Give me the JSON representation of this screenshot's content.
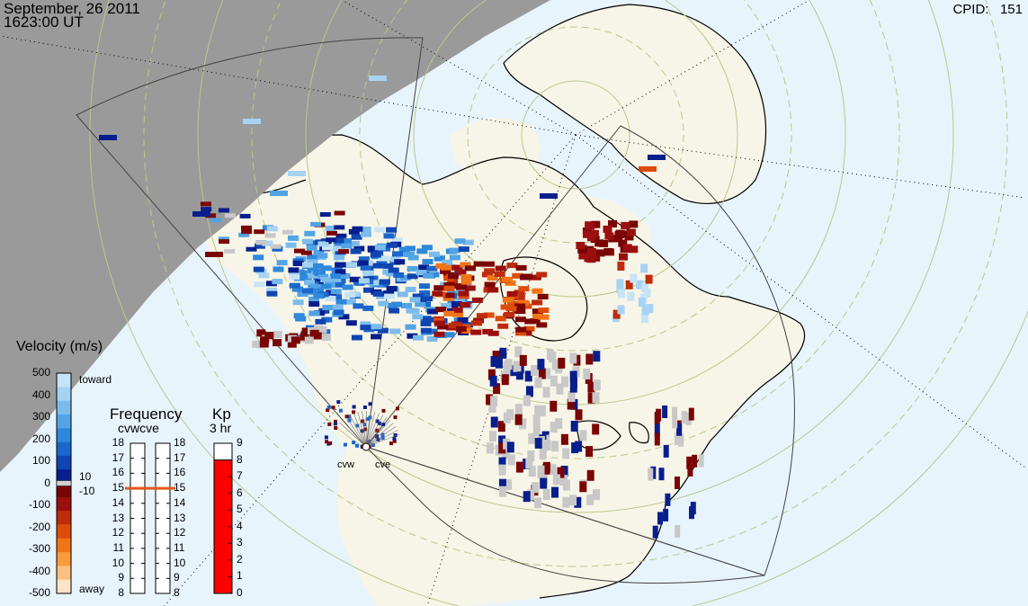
{
  "header": {
    "date": "September, 26 2011",
    "time": "1623:00 UT",
    "cpid_label": "CPID:",
    "cpid_value": "151"
  },
  "velocity_scale": {
    "title": "Velocity (m/s)",
    "ticks": [
      "500",
      "400",
      "300",
      "200",
      "100",
      "0",
      "-100",
      "-200",
      "-300",
      "-400",
      "-500"
    ],
    "toward_label": "toward",
    "away_label": "away",
    "threshold_pos": "10",
    "threshold_neg": "-10",
    "toward_colors": [
      "#c6e4f7",
      "#a7d3f3",
      "#7cbcec",
      "#52a4e4",
      "#2e88db",
      "#1a67cc",
      "#0f45b1",
      "#081e8c"
    ],
    "away_colors": [
      "#7a0505",
      "#9c0f0f",
      "#bd2c0c",
      "#dc4d0a",
      "#f17415",
      "#f99a3b",
      "#fbc081",
      "#fde3c7"
    ]
  },
  "frequency_panel": {
    "title": "Frequency",
    "radars_label": "cvwcve",
    "ticks": [
      "18",
      "17",
      "16",
      "15",
      "14",
      "13",
      "12",
      "11",
      "10",
      "9",
      "8"
    ],
    "cvw_mhz": 15.0,
    "cve_mhz": 15.0,
    "marker_color": "#e2571a"
  },
  "kp_panel": {
    "title": "Kp",
    "subtitle": "3 hr",
    "ticks": [
      "9",
      "8",
      "7",
      "6",
      "5",
      "4",
      "3",
      "2",
      "1",
      "0"
    ],
    "kp_value": 8,
    "bar_color": "#ff0000"
  },
  "radars": [
    {
      "name": "cvw"
    },
    {
      "name": "cve"
    }
  ],
  "map": {
    "night_color": "#9a9a9a",
    "ocean_color": "#e8f4fc",
    "land_color": "#f7f5e7",
    "grid_color": "#b9c98a"
  }
}
